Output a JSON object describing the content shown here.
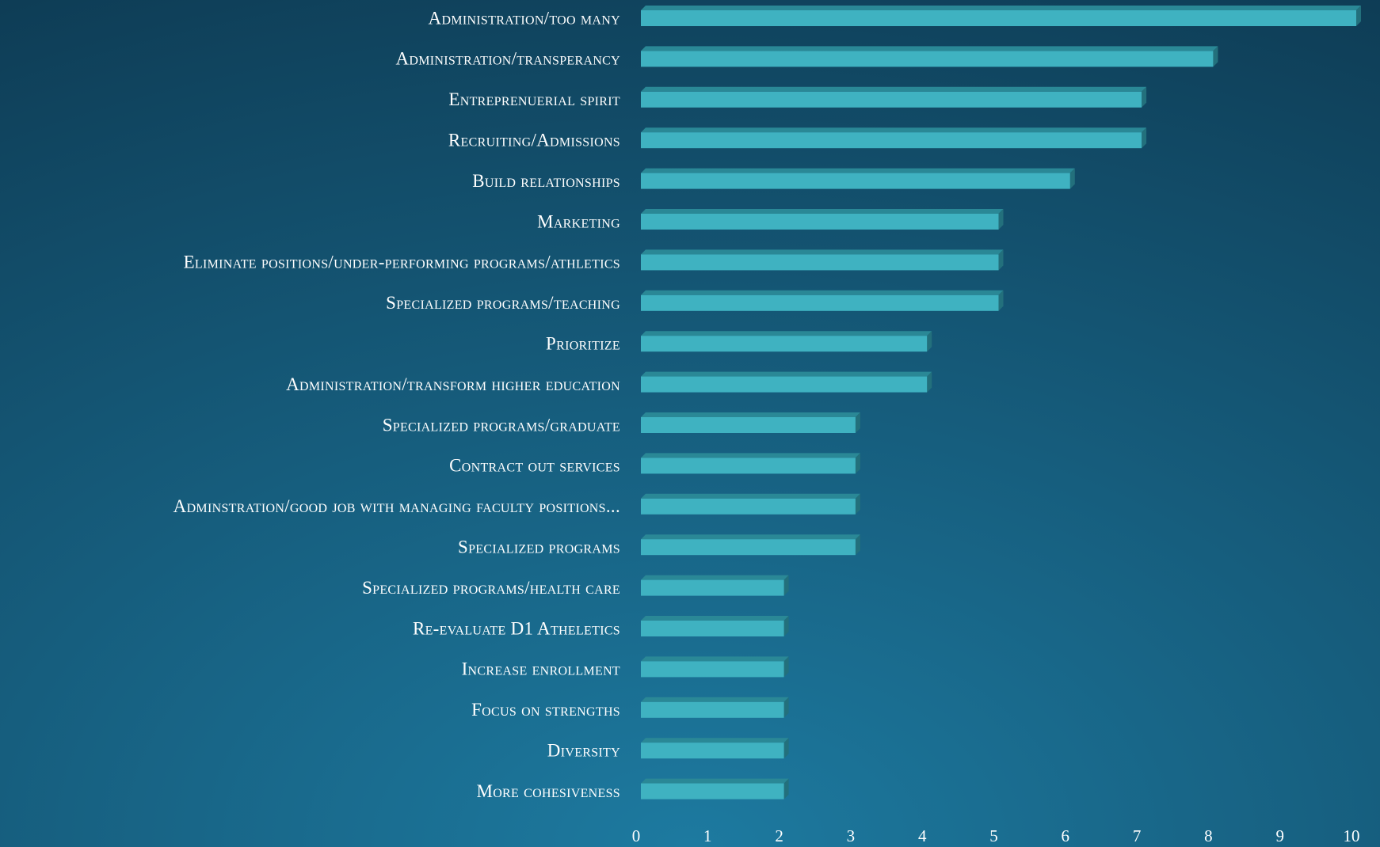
{
  "chart_data": {
    "type": "bar",
    "orientation": "horizontal",
    "categories": [
      "Administration/too many",
      "Administration/transperancy",
      "Entreprenuerial spirit",
      "Recruiting/Admissions",
      "Build relationships",
      "Marketing",
      "Eliminate positions/under-performing programs/athletics",
      "Specialized programs/teaching",
      "Prioritize",
      "Administration/transform higher education",
      "Specialized programs/graduate",
      "Contract out services",
      "Adminstration/good job with managing faculty positions...",
      "Specialized programs",
      "Specialized programs/health care",
      "Re-evaluate D1 Atheletics",
      "Increase enrollment",
      "Focus on strengths",
      "Diversity",
      "More cohesiveness"
    ],
    "values": [
      10,
      8,
      7,
      7,
      6,
      5,
      5,
      5,
      4,
      4,
      3,
      3,
      3,
      3,
      2,
      2,
      2,
      2,
      2,
      2
    ],
    "color": "#3fb2c1",
    "xlim": [
      0,
      10
    ],
    "xticks": [
      0,
      1,
      2,
      3,
      4,
      5,
      6,
      7,
      8,
      9,
      10
    ],
    "grid": false
  }
}
